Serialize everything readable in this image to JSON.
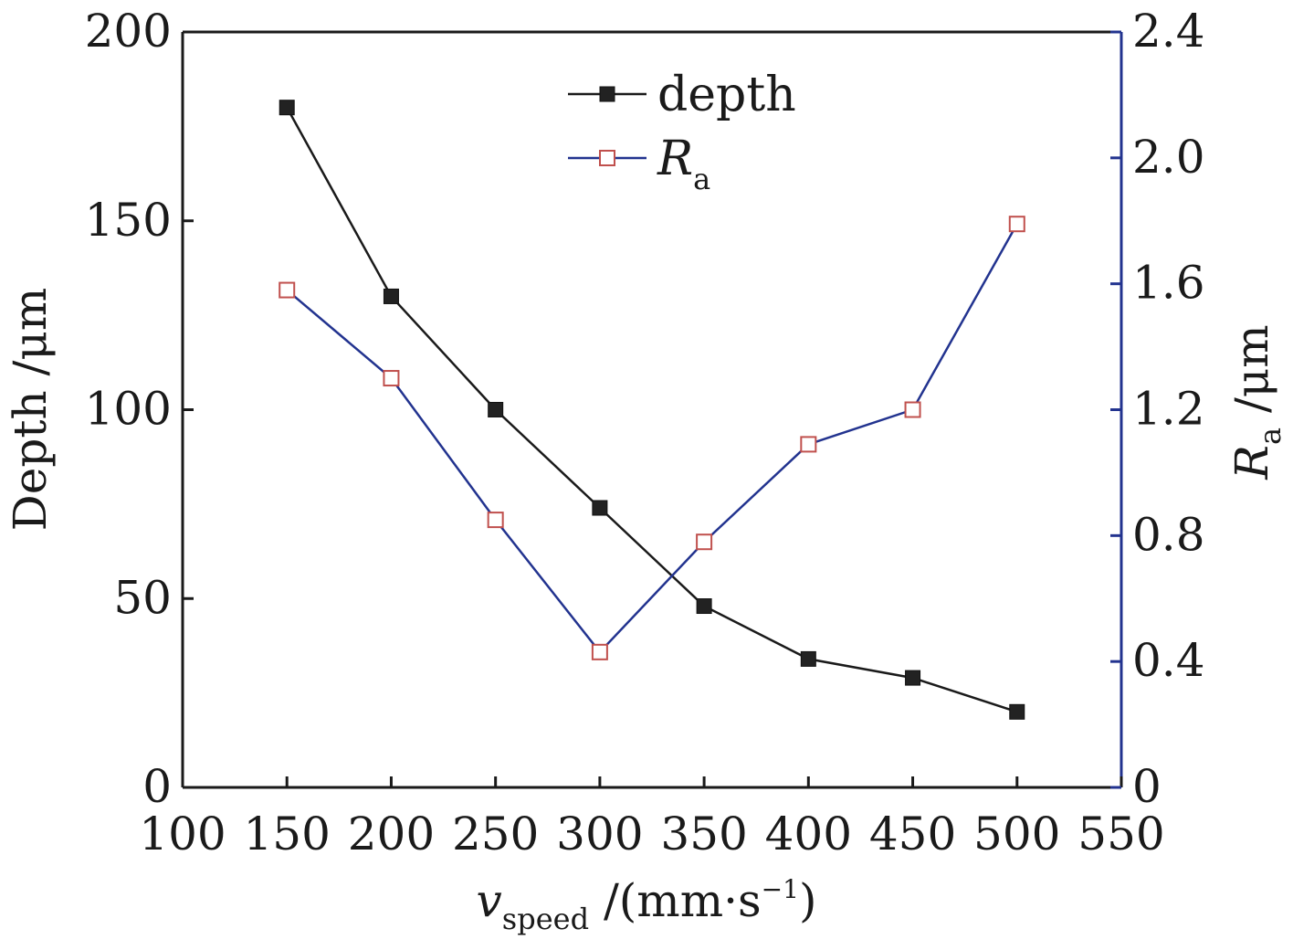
{
  "chart_data": {
    "type": "line",
    "x": [
      150,
      200,
      250,
      300,
      350,
      400,
      450,
      500
    ],
    "series": [
      {
        "name": "depth",
        "axis": "left",
        "color": "#1a1a1a",
        "marker": "filled-square",
        "values": [
          180,
          130,
          100,
          74,
          48,
          34,
          29,
          20
        ]
      },
      {
        "name": "R",
        "name_subscript": "a",
        "axis": "right",
        "color": "#22338f",
        "marker_color": "#c0504d",
        "marker": "open-square",
        "values": [
          1.58,
          1.3,
          0.85,
          0.43,
          0.78,
          1.09,
          1.2,
          1.79
        ]
      }
    ],
    "xlim": [
      100,
      550
    ],
    "xticks": [
      "100",
      "150",
      "200",
      "250",
      "300",
      "350",
      "400",
      "450",
      "500",
      "550"
    ],
    "ylim_left": [
      0,
      200
    ],
    "yticks_left": [
      "0",
      "50",
      "100",
      "150",
      "200"
    ],
    "ylim_right": [
      0,
      2.4
    ],
    "yticks_right": [
      "0",
      "0.4",
      "0.8",
      "1.2",
      "1.6",
      "2.0",
      "2.4"
    ],
    "xlabel": {
      "main": "v",
      "sub": "speed",
      "unit": " /(mm·s",
      "sup": "−1",
      "close": ")"
    },
    "ylabel_left": "Depth /μm",
    "ylabel_right": {
      "main": "R",
      "sub": "a",
      "unit": " /μm"
    },
    "legend_position": "top-center",
    "grid": false,
    "right_axis_color": "#22338f"
  }
}
